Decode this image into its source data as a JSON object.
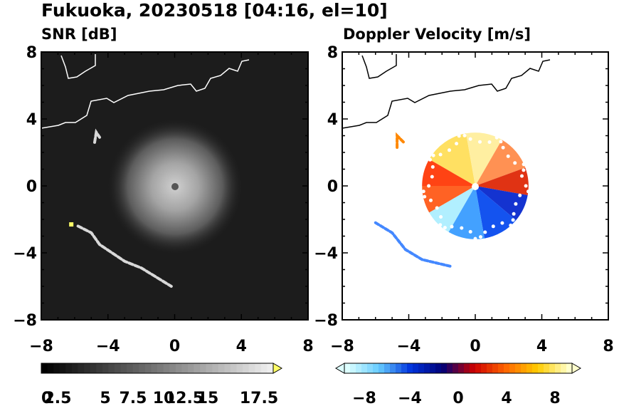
{
  "title": "Fukuoka, 20230518 [04:16, el=10]",
  "chart_data": [
    {
      "type": "heatmap",
      "title": "SNR [dB]",
      "xlim": [
        -8,
        8
      ],
      "ylim": [
        -8,
        8
      ],
      "xticks": [
        "−8",
        "−4",
        "0",
        "4",
        "8"
      ],
      "yticks": [
        "8",
        "4",
        "0",
        "−4",
        "−8"
      ],
      "colorbar": {
        "range": [
          0,
          19
        ],
        "labels": [
          "0",
          "2.5",
          "5",
          "7.5",
          "10",
          "12.5",
          "15",
          "17.5"
        ],
        "colors": [
          "#000000",
          "#ffff66"
        ]
      },
      "features": {
        "center": [
          0,
          0
        ],
        "echo_radius_km": 3.5,
        "clutter_bands": [
          [
            [
              -4.8,
              2.6
            ],
            [
              -4.7,
              3.2
            ],
            [
              -4.5,
              2.9
            ]
          ],
          [
            [
              -5.8,
              -2.4
            ],
            [
              -5.0,
              -2.8
            ],
            [
              -4.5,
              -3.5
            ],
            [
              -3.0,
              -4.5
            ],
            [
              -2.0,
              -4.9
            ],
            [
              -0.2,
              -6.0
            ]
          ]
        ]
      }
    },
    {
      "type": "heatmap",
      "title": "Doppler Velocity [m/s]",
      "xlim": [
        -8,
        8
      ],
      "ylim": [
        -8,
        8
      ],
      "xticks": [
        "−8",
        "−4",
        "0",
        "4",
        "8"
      ],
      "yticks": [
        "8",
        "4",
        "0",
        "−4",
        "−8"
      ],
      "colorbar": {
        "range": [
          -10,
          10
        ],
        "labels": [
          "−8",
          "−4",
          "0",
          "4",
          "8"
        ],
        "colors": [
          "#ddffff",
          "#66ccff",
          "#0033dd",
          "#000077",
          "#cc0000",
          "#ff6600",
          "#ffcc00",
          "#ffffcc"
        ]
      },
      "features": {
        "center": [
          0,
          0
        ],
        "echo_radius_km": 3.2,
        "outliers": [
          [
            [
              -4.7,
              2.3
            ],
            [
              -4.7,
              3.0
            ],
            [
              -4.3,
              2.6
            ]
          ],
          [
            [
              -6.0,
              -2.2
            ],
            [
              -5.0,
              -2.8
            ],
            [
              -4.2,
              -3.8
            ],
            [
              -3.2,
              -4.4
            ],
            [
              -1.5,
              -4.8
            ]
          ]
        ]
      }
    }
  ]
}
